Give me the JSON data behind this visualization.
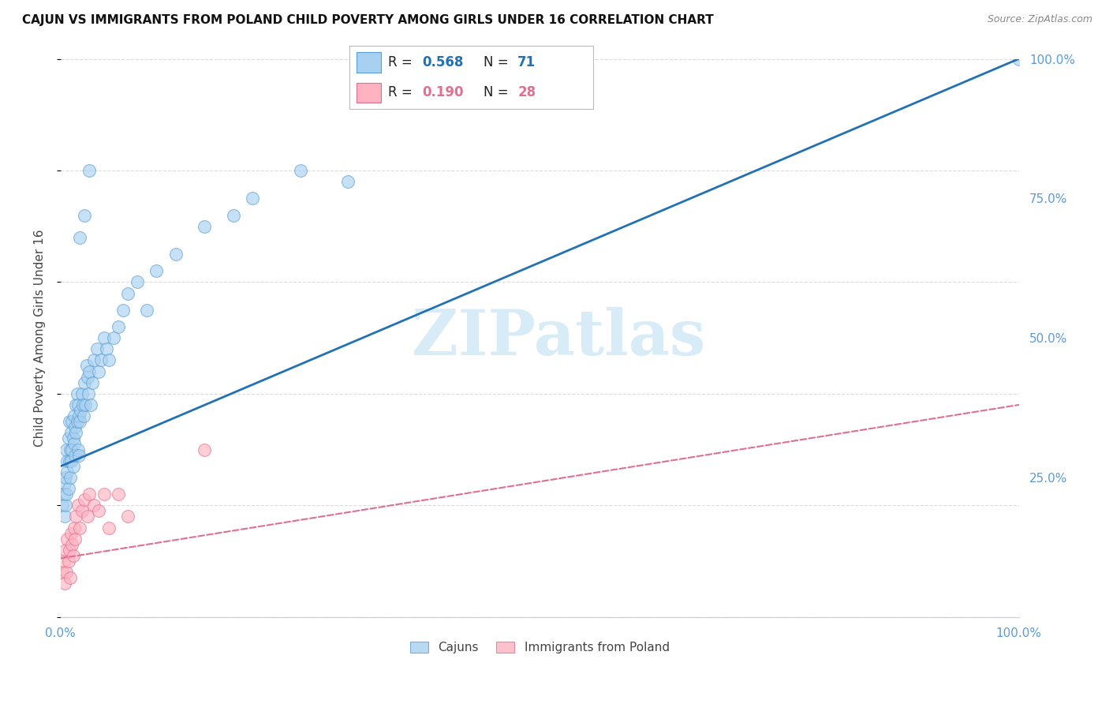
{
  "title": "CAJUN VS IMMIGRANTS FROM POLAND CHILD POVERTY AMONG GIRLS UNDER 16 CORRELATION CHART",
  "source": "Source: ZipAtlas.com",
  "ylabel": "Child Poverty Among Girls Under 16",
  "right_ytick_labels": [
    "100.0%",
    "75.0%",
    "50.0%",
    "25.0%"
  ],
  "right_ytick_values": [
    1.0,
    0.75,
    0.5,
    0.25
  ],
  "legend_r1": "R = 0.568",
  "legend_n1": "N = 71",
  "legend_r2": "R = 0.190",
  "legend_n2": "N = 28",
  "cajun_color": "#a8d0f0",
  "cajun_edge_color": "#5a9fd4",
  "poland_color": "#ffb3c1",
  "poland_edge_color": "#e07090",
  "cajun_line_color": "#2171b5",
  "poland_line_color": "#e07090",
  "background_color": "#ffffff",
  "grid_color": "#cccccc",
  "axis_color": "#5b9bd5",
  "watermark_color": "#d8ecf8",
  "xlim": [
    0.0,
    1.0
  ],
  "ylim": [
    0.0,
    1.0
  ],
  "cajun_line_x0": 0.0,
  "cajun_line_y0": 0.27,
  "cajun_line_x1": 1.0,
  "cajun_line_y1": 1.0,
  "poland_line_x0": 0.0,
  "poland_line_y0": 0.105,
  "poland_line_x1": 1.0,
  "poland_line_y1": 0.38,
  "cajun_scatter_x": [
    0.002,
    0.003,
    0.004,
    0.004,
    0.005,
    0.005,
    0.006,
    0.006,
    0.007,
    0.007,
    0.008,
    0.008,
    0.009,
    0.009,
    0.01,
    0.01,
    0.011,
    0.011,
    0.012,
    0.012,
    0.013,
    0.013,
    0.014,
    0.014,
    0.015,
    0.015,
    0.016,
    0.016,
    0.017,
    0.017,
    0.018,
    0.018,
    0.019,
    0.019,
    0.02,
    0.021,
    0.022,
    0.023,
    0.024,
    0.025,
    0.026,
    0.027,
    0.028,
    0.029,
    0.03,
    0.031,
    0.033,
    0.035,
    0.038,
    0.04,
    0.042,
    0.045,
    0.048,
    0.05,
    0.055,
    0.06,
    0.065,
    0.07,
    0.08,
    0.09,
    0.1,
    0.12,
    0.15,
    0.18,
    0.2,
    0.25,
    0.3,
    0.02,
    0.025,
    0.03,
    1.0
  ],
  "cajun_scatter_y": [
    0.2,
    0.22,
    0.24,
    0.18,
    0.25,
    0.2,
    0.22,
    0.3,
    0.26,
    0.28,
    0.23,
    0.32,
    0.28,
    0.35,
    0.3,
    0.25,
    0.33,
    0.28,
    0.35,
    0.3,
    0.32,
    0.27,
    0.36,
    0.31,
    0.34,
    0.29,
    0.38,
    0.33,
    0.4,
    0.35,
    0.38,
    0.3,
    0.36,
    0.29,
    0.35,
    0.37,
    0.4,
    0.38,
    0.36,
    0.42,
    0.38,
    0.45,
    0.43,
    0.4,
    0.44,
    0.38,
    0.42,
    0.46,
    0.48,
    0.44,
    0.46,
    0.5,
    0.48,
    0.46,
    0.5,
    0.52,
    0.55,
    0.58,
    0.6,
    0.55,
    0.62,
    0.65,
    0.7,
    0.72,
    0.75,
    0.8,
    0.78,
    0.68,
    0.72,
    0.8,
    1.0
  ],
  "poland_scatter_x": [
    0.002,
    0.003,
    0.004,
    0.005,
    0.006,
    0.007,
    0.008,
    0.009,
    0.01,
    0.011,
    0.012,
    0.013,
    0.014,
    0.015,
    0.016,
    0.018,
    0.02,
    0.022,
    0.025,
    0.028,
    0.03,
    0.035,
    0.04,
    0.045,
    0.05,
    0.06,
    0.07,
    0.15
  ],
  "poland_scatter_y": [
    0.08,
    0.1,
    0.06,
    0.12,
    0.08,
    0.14,
    0.1,
    0.12,
    0.07,
    0.15,
    0.13,
    0.11,
    0.16,
    0.14,
    0.18,
    0.2,
    0.16,
    0.19,
    0.21,
    0.18,
    0.22,
    0.2,
    0.19,
    0.22,
    0.16,
    0.22,
    0.18,
    0.3
  ]
}
